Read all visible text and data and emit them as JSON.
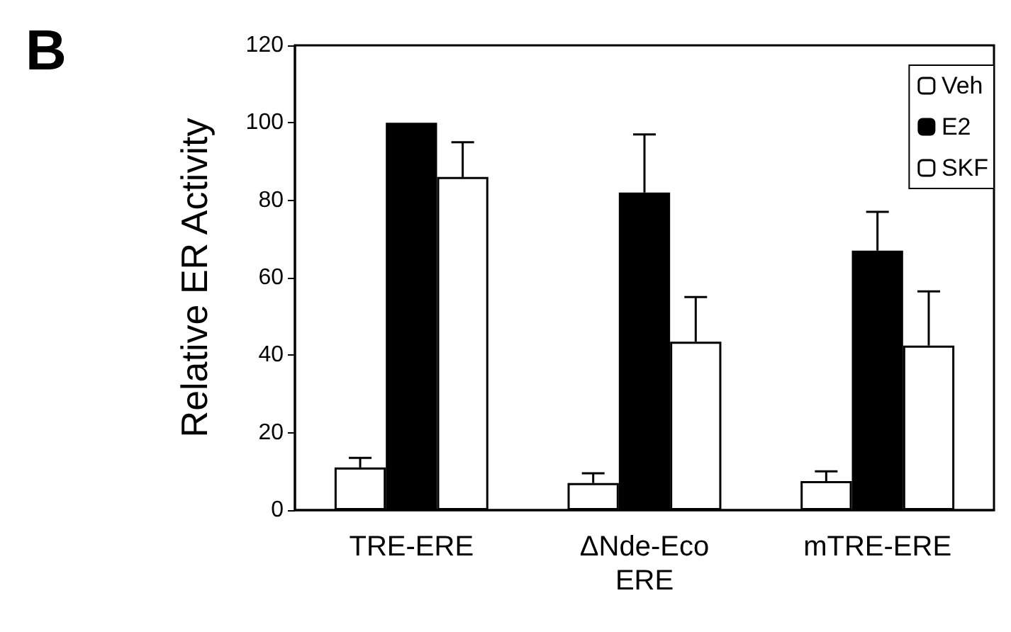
{
  "chart_data": {
    "type": "bar",
    "ylabel": "Relative ER Activity",
    "annotations": [
      "B"
    ],
    "categories": [
      "TRE-ERE",
      "ΔNde-Eco\nERE",
      "mTRE-ERE"
    ],
    "series": [
      {
        "name": "Veh",
        "color": "#ffffff",
        "values": [
          11,
          7,
          7.5
        ],
        "errors": [
          [
            11,
            13.5
          ],
          [
            7,
            9.5
          ],
          [
            7.5,
            10
          ]
        ]
      },
      {
        "name": "E2",
        "color": "#000000",
        "values": [
          100,
          82,
          67
        ],
        "errors": [
          null,
          [
            82,
            97
          ],
          [
            67,
            77
          ]
        ]
      },
      {
        "name": "SKF",
        "color": "#ffffff",
        "values": [
          86,
          43.5,
          42.5
        ],
        "errors": [
          [
            86,
            95
          ],
          [
            43.5,
            55
          ],
          [
            42.5,
            56.5
          ]
        ]
      }
    ],
    "ylim": [
      0,
      120
    ],
    "yticks": [
      0,
      20,
      40,
      60,
      80,
      100,
      120
    ],
    "grid": false,
    "legend": "top right"
  }
}
